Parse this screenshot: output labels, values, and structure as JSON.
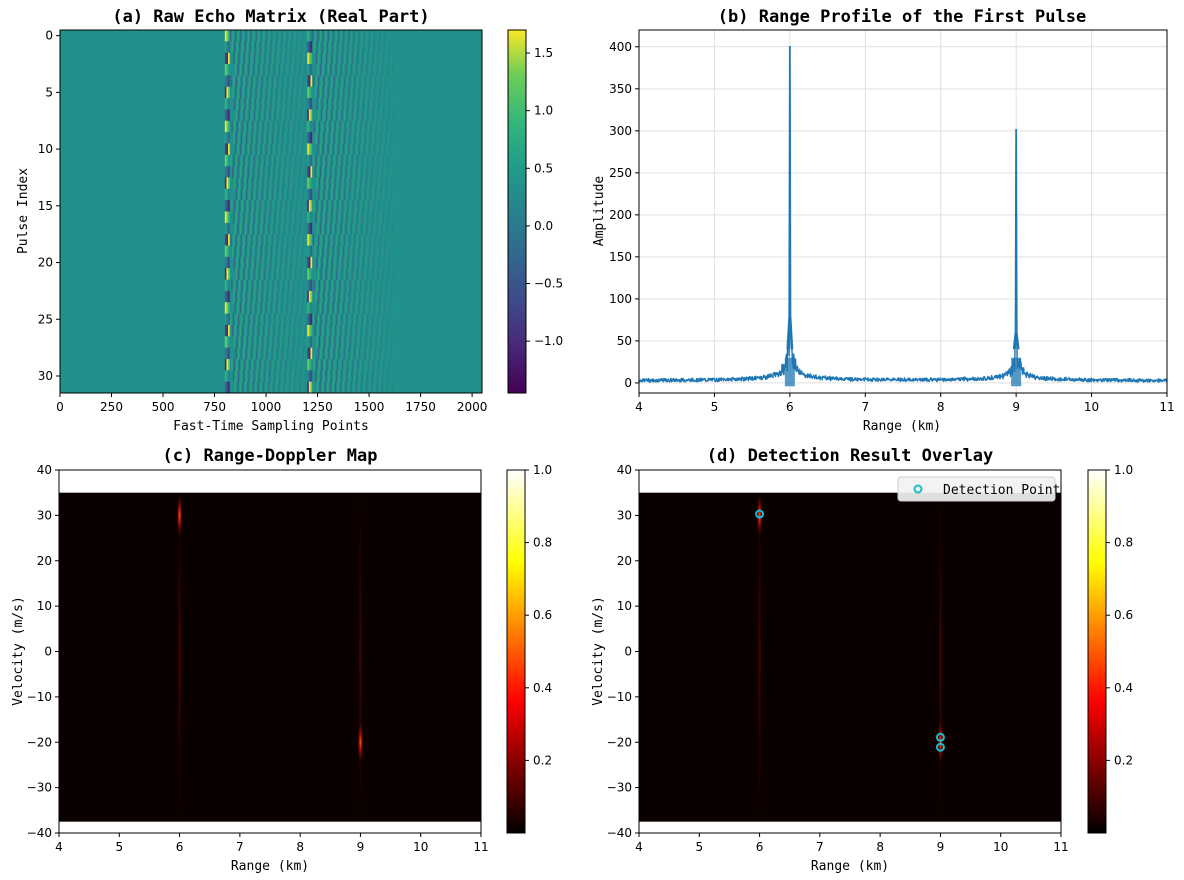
{
  "chart_data": [
    {
      "type": "heatmap",
      "title": "(a) Raw Echo Matrix (Real Part)",
      "xlabel": "Fast-Time Sampling Points",
      "ylabel": "Pulse Index",
      "xlim": [
        0,
        2048
      ],
      "ylim": [
        31.5,
        -0.5
      ],
      "x_ticks": [
        "0",
        "250",
        "500",
        "750",
        "1000",
        "1250",
        "1500",
        "1750",
        "2000"
      ],
      "y_ticks": [
        "0",
        "5",
        "10",
        "15",
        "20",
        "25",
        "30"
      ],
      "colormap": "viridis",
      "colorbar_range": [
        -1.45,
        1.7
      ],
      "colorbar_ticks": [
        "−1.0",
        "−0.5",
        "0.0",
        "0.5",
        "1.0",
        "1.5"
      ],
      "echo_bands": [
        {
          "start": 800,
          "end": 1200,
          "amplitude": 1.7
        },
        {
          "start": 1200,
          "end": 1600,
          "amplitude": 1.4
        }
      ],
      "grid": false
    },
    {
      "type": "line",
      "title": "(b) Range Profile of the First Pulse",
      "xlabel": "Range (km)",
      "ylabel": "Amplitude",
      "xlim": [
        4,
        11
      ],
      "ylim": [
        -12,
        420
      ],
      "x_ticks": [
        "4",
        "5",
        "6",
        "7",
        "8",
        "9",
        "10",
        "11"
      ],
      "y_ticks": [
        "0",
        "50",
        "100",
        "150",
        "200",
        "250",
        "300",
        "350",
        "400"
      ],
      "noise_floor": 2,
      "peaks": [
        {
          "x": 6.0,
          "y": 401
        },
        {
          "x": 9.0,
          "y": 302
        }
      ],
      "color": "#1f77b4",
      "grid": true
    },
    {
      "type": "heatmap",
      "title": "(c) Range-Doppler Map",
      "xlabel": "Range (km)",
      "ylabel": "Velocity (m/s)",
      "xlim": [
        4,
        11
      ],
      "ylim": [
        -40,
        40
      ],
      "data_extent_y": [
        -37.5,
        35
      ],
      "x_ticks": [
        "4",
        "5",
        "6",
        "7",
        "8",
        "9",
        "10",
        "11"
      ],
      "y_ticks": [
        "40",
        "30",
        "20",
        "10",
        "0",
        "−10",
        "−20",
        "−30",
        "−40"
      ],
      "colormap": "hot",
      "colorbar_range": [
        0,
        1
      ],
      "colorbar_ticks": [
        "0.2",
        "0.4",
        "0.6",
        "0.8",
        "1.0"
      ],
      "targets": [
        {
          "range": 6.0,
          "velocity": 30
        },
        {
          "range": 9.0,
          "velocity": -20
        }
      ],
      "grid": false
    },
    {
      "type": "heatmap",
      "title": "(d) Detection Result Overlay",
      "xlabel": "Range (km)",
      "ylabel": "Velocity (m/s)",
      "xlim": [
        4,
        11
      ],
      "ylim": [
        -40,
        40
      ],
      "data_extent_y": [
        -37.5,
        35
      ],
      "x_ticks": [
        "4",
        "5",
        "6",
        "7",
        "8",
        "9",
        "10",
        "11"
      ],
      "y_ticks": [
        "40",
        "30",
        "20",
        "10",
        "0",
        "−10",
        "−20",
        "−30",
        "−40"
      ],
      "colormap": "hot",
      "colorbar_range": [
        0,
        1
      ],
      "colorbar_ticks": [
        "0.2",
        "0.4",
        "0.6",
        "0.8",
        "1.0"
      ],
      "targets": [
        {
          "range": 6.0,
          "velocity": 30
        },
        {
          "range": 9.0,
          "velocity": -20
        }
      ],
      "legend": {
        "label": "Detection Point",
        "placement": "top-right"
      },
      "marker_color": "#17becf",
      "detections": [
        {
          "range": 6.0,
          "velocity": 30.3
        },
        {
          "range": 9.0,
          "velocity": -18.9
        },
        {
          "range": 9.0,
          "velocity": -21.1
        }
      ],
      "grid": false
    }
  ]
}
